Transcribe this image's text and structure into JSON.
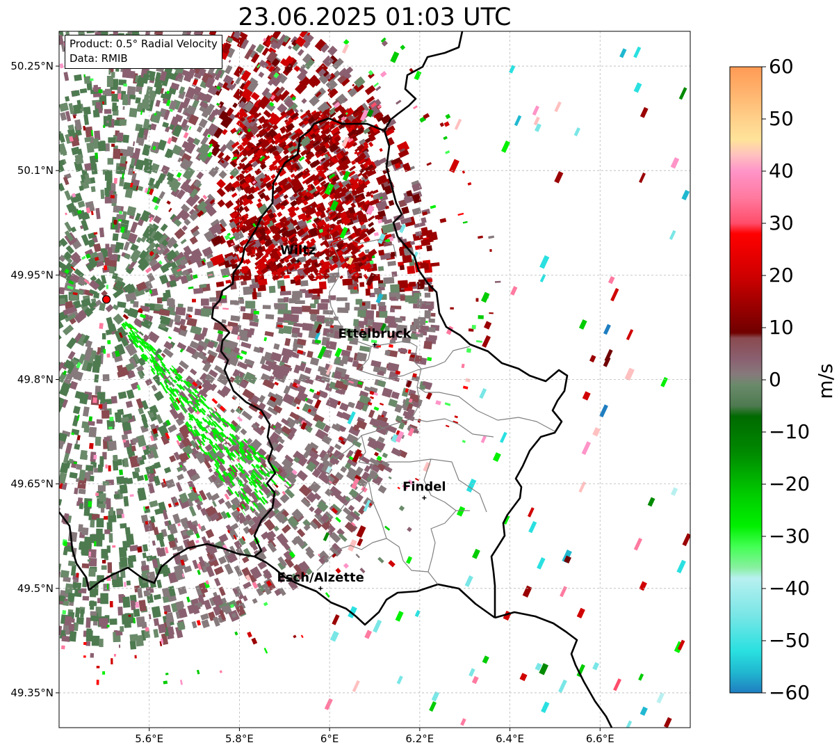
{
  "title": "23.06.2025 01:03 UTC",
  "info": {
    "product": "Product: 0.5° Radial Velocity",
    "source": "Data: RMIB"
  },
  "axes": {
    "lon_ticks": [
      "5.6°E",
      "5.8°E",
      "6°E",
      "6.2°E",
      "6.4°E",
      "6.6°E"
    ],
    "lat_ticks": [
      "50.25°N",
      "50.1°N",
      "49.95°N",
      "49.8°N",
      "49.65°N",
      "49.5°N",
      "49.35°N"
    ],
    "lon_values": [
      5.6,
      5.8,
      6.0,
      6.2,
      6.4,
      6.6
    ],
    "lat_values": [
      50.25,
      50.1,
      49.95,
      49.8,
      49.65,
      49.5,
      49.35
    ],
    "lon_range": [
      5.4,
      6.8
    ],
    "lat_range": [
      49.3,
      50.3
    ],
    "grid": true
  },
  "places": [
    {
      "name": "Wiltz",
      "lon": 5.93,
      "lat": 49.97
    },
    {
      "name": "Ettelbruck",
      "lon": 6.1,
      "lat": 49.85
    },
    {
      "name": "Findel",
      "lon": 6.21,
      "lat": 49.63
    },
    {
      "name": "Esch/Alzette",
      "lon": 5.98,
      "lat": 49.5
    }
  ],
  "radar_site": {
    "lon": 5.505,
    "lat": 49.915
  },
  "colorbar": {
    "label": "m/s",
    "ticks": [
      "60",
      "50",
      "40",
      "30",
      "20",
      "10",
      "0",
      "−10",
      "−20",
      "−30",
      "−40",
      "−50",
      "−60"
    ],
    "min": -60,
    "max": 60,
    "stops": [
      {
        "v": 60,
        "c": "#ff9a55"
      },
      {
        "v": 55,
        "c": "#ffb46e"
      },
      {
        "v": 50,
        "c": "#ffd08a"
      },
      {
        "v": 46,
        "c": "#ffe39a"
      },
      {
        "v": 43,
        "c": "#ffc0c0"
      },
      {
        "v": 40,
        "c": "#ff94c8"
      },
      {
        "v": 35,
        "c": "#ff7aa0"
      },
      {
        "v": 30,
        "c": "#ff4d6a"
      },
      {
        "v": 28,
        "c": "#ff0000"
      },
      {
        "v": 20,
        "c": "#d00000"
      },
      {
        "v": 14,
        "c": "#9a0000"
      },
      {
        "v": 9,
        "c": "#700000"
      },
      {
        "v": 8,
        "c": "#8a4a50"
      },
      {
        "v": 4,
        "c": "#8a6070"
      },
      {
        "v": 1,
        "c": "#867a7c"
      },
      {
        "v": -1,
        "c": "#6a8a6a"
      },
      {
        "v": -5,
        "c": "#4e7a50"
      },
      {
        "v": -7,
        "c": "#006a00"
      },
      {
        "v": -14,
        "c": "#008a00"
      },
      {
        "v": -22,
        "c": "#00cc00"
      },
      {
        "v": -28,
        "c": "#00f000"
      },
      {
        "v": -32,
        "c": "#44ff55"
      },
      {
        "v": -36,
        "c": "#88f0a0"
      },
      {
        "v": -38,
        "c": "#b8f0f0"
      },
      {
        "v": -45,
        "c": "#7ae6e6"
      },
      {
        "v": -52,
        "c": "#2ae0e0"
      },
      {
        "v": -56,
        "c": "#20b8d0"
      },
      {
        "v": -60,
        "c": "#1f7ec0"
      }
    ]
  }
}
